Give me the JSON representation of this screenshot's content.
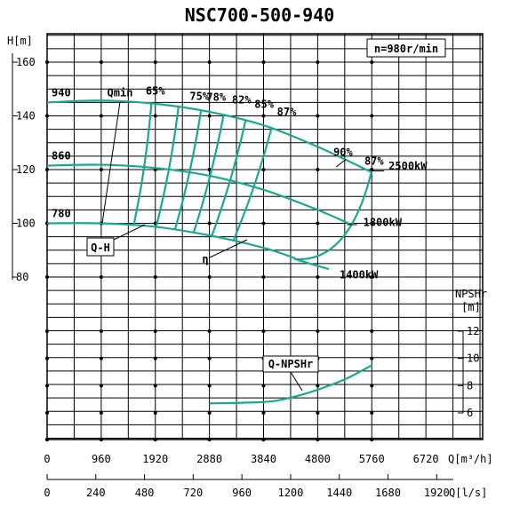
{
  "chart_data": {
    "type": "line",
    "title": "NSC700-500-940",
    "speed_label": "n=980r/min",
    "y_label_head": "H[m]",
    "y_label_npsh_top": "NPSHr",
    "y_label_npsh_unit": "[m]",
    "x_label_m3h": "Q[m³/h]",
    "x_label_ls": "Q[l/s]",
    "x_ticks_m3h": [
      "0",
      "960",
      "1920",
      "2880",
      "3840",
      "4800",
      "5760",
      "6720"
    ],
    "x_ticks_ls": [
      "0",
      "240",
      "480",
      "720",
      "960",
      "1200",
      "1440",
      "1680",
      "1920"
    ],
    "y_ticks_head": [
      "160",
      "140",
      "120",
      "100",
      "80"
    ],
    "y_ticks_npsh": [
      "12",
      "10",
      "8",
      "6"
    ],
    "xlim": [
      0,
      7680
    ],
    "ylim_head": [
      80,
      160
    ],
    "ylim_npsh": [
      6,
      12
    ],
    "head_curves": [
      {
        "label": "940",
        "points": [
          [
            0,
            145
          ],
          [
            960,
            145.7
          ],
          [
            1920,
            144.5
          ],
          [
            2880,
            141.5
          ],
          [
            3840,
            136.5
          ],
          [
            4800,
            128.5
          ],
          [
            5760,
            119
          ]
        ]
      },
      {
        "label": "860",
        "points": [
          [
            0,
            121.5
          ],
          [
            960,
            121.8
          ],
          [
            1920,
            120.6
          ],
          [
            2880,
            117.7
          ],
          [
            3840,
            112.5
          ],
          [
            4800,
            105
          ],
          [
            5400,
            99.5
          ]
        ]
      },
      {
        "label": "780",
        "points": [
          [
            0,
            100
          ],
          [
            960,
            100
          ],
          [
            1920,
            98.7
          ],
          [
            2880,
            95.5
          ],
          [
            3840,
            90.9
          ],
          [
            4400,
            87
          ]
        ]
      }
    ],
    "efficiency_labels": [
      "65%",
      "75%",
      "78%",
      "82%",
      "85%",
      "87%",
      "90%",
      "87%"
    ],
    "power_labels": [
      "2500kW",
      "1800kW",
      "1400kW"
    ],
    "curve_labels": {
      "qmin": "Qmin",
      "qh": "Q-H",
      "eta": "η",
      "q_npshr": "Q-NPSHr"
    },
    "npshr_curve": [
      [
        2880,
        6.7
      ],
      [
        3840,
        6.8
      ],
      [
        4300,
        7.1
      ],
      [
        4800,
        7.7
      ],
      [
        5300,
        8.5
      ],
      [
        5760,
        9.5
      ]
    ]
  }
}
